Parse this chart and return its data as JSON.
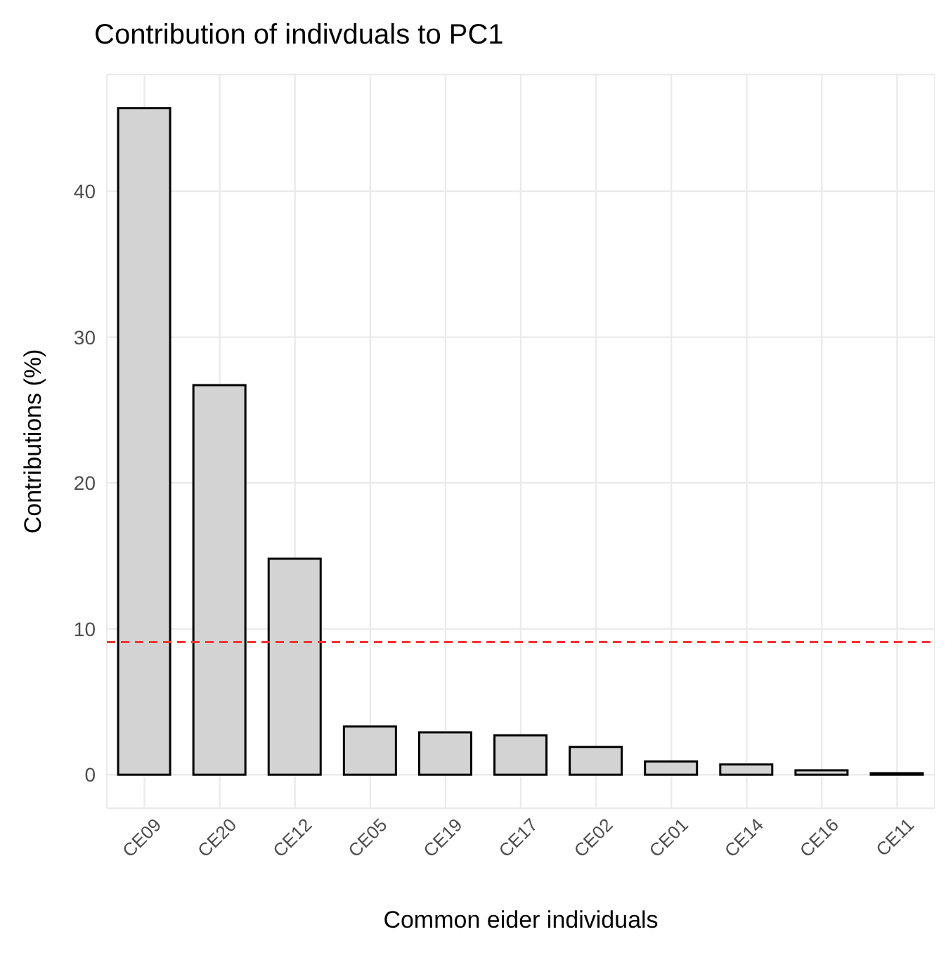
{
  "chart_data": {
    "type": "bar",
    "title": "Contribution of indivduals to PC1",
    "xlabel": "Common eider individuals",
    "ylabel": "Contributions (%)",
    "categories": [
      "CE09",
      "CE20",
      "CE12",
      "CE05",
      "CE19",
      "CE17",
      "CE02",
      "CE01",
      "CE14",
      "CE16",
      "CE11"
    ],
    "values": [
      45.7,
      26.7,
      14.8,
      3.3,
      2.9,
      2.7,
      1.9,
      0.9,
      0.7,
      0.3,
      0.1
    ],
    "color": "#d3d3d3",
    "ylim": [
      -2.3,
      48
    ],
    "yticks": [
      0,
      10,
      20,
      30,
      40
    ],
    "grid": true,
    "ref_lines": [
      {
        "axis": "y",
        "value": 9.09,
        "color": "#ff3333",
        "line_style": "dashed"
      }
    ]
  }
}
